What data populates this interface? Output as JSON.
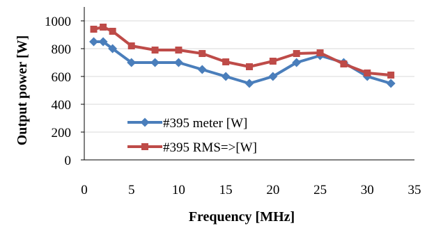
{
  "chart_data": {
    "type": "line",
    "title": "",
    "xlabel": "Frequency [MHz]",
    "ylabel": "Output power [W]",
    "xlim": [
      0,
      35
    ],
    "ylim": [
      0,
      1000
    ],
    "x_ticks": [
      0,
      5,
      10,
      15,
      20,
      25,
      30,
      35
    ],
    "y_ticks": [
      0,
      200,
      400,
      600,
      800,
      1000
    ],
    "grid": "horizontal",
    "legend_position": "bottom-left inside",
    "series": [
      {
        "name": "#395 meter [W]",
        "color": "#4a7ebb",
        "marker": "diamond",
        "x": [
          1,
          2,
          3,
          5,
          7.5,
          10,
          12.5,
          15,
          17.5,
          20,
          22.5,
          25,
          27.5,
          30,
          32.5
        ],
        "y": [
          850,
          850,
          800,
          700,
          700,
          700,
          650,
          600,
          550,
          600,
          700,
          750,
          700,
          600,
          550
        ]
      },
      {
        "name": "#395 RMS=>[W]",
        "color": "#be4b48",
        "marker": "square",
        "x": [
          1,
          2,
          3,
          5,
          7.5,
          10,
          12.5,
          15,
          17.5,
          20,
          22.5,
          25,
          27.5,
          30,
          32.5
        ],
        "y": [
          940,
          955,
          925,
          820,
          790,
          790,
          765,
          705,
          670,
          710,
          765,
          770,
          690,
          625,
          610
        ]
      }
    ]
  }
}
